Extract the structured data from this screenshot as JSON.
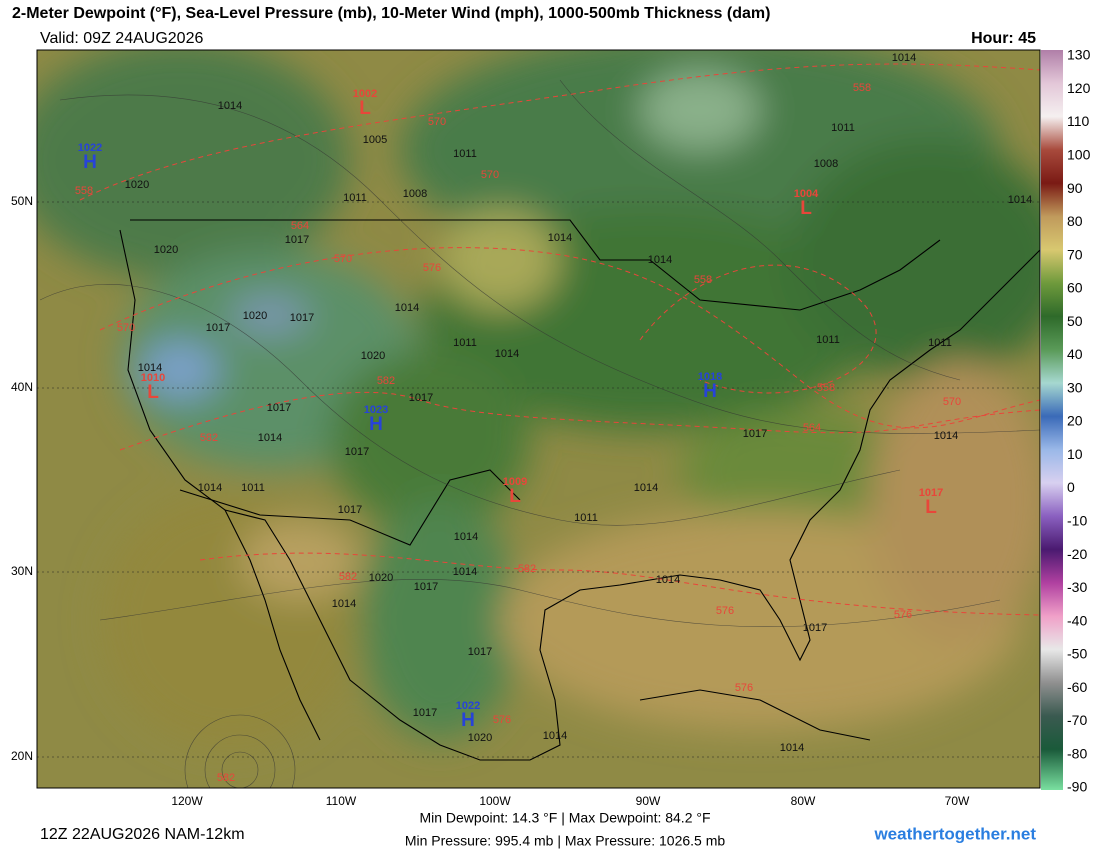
{
  "header": {
    "title": "2-Meter Dewpoint (°F), Sea-Level Pressure (mb), 10-Meter Wind (mph), 1000-500mb Thickness (dam)",
    "valid": "Valid: 09Z 24AUG2026",
    "hour": "Hour: 45"
  },
  "colorbar": {
    "ticks": [
      130,
      120,
      110,
      100,
      90,
      80,
      70,
      60,
      50,
      40,
      30,
      20,
      10,
      0,
      -10,
      -20,
      -30,
      -40,
      -50,
      -60,
      -70,
      -80,
      -90
    ]
  },
  "latitude_labels": [
    "50N",
    "40N",
    "30N",
    "20N"
  ],
  "longitude_labels": [
    "120W",
    "110W",
    "100W",
    "90W",
    "80W",
    "70W"
  ],
  "pressure_centers": [
    {
      "symbol": "H",
      "value": 1022
    },
    {
      "symbol": "L",
      "value": 1002
    },
    {
      "symbol": "L",
      "value": 1004
    },
    {
      "symbol": "L",
      "value": 1010
    },
    {
      "symbol": "H",
      "value": 1023
    },
    {
      "symbol": "H",
      "value": 1018
    },
    {
      "symbol": "L",
      "value": 1009
    },
    {
      "symbol": "L",
      "value": 1017
    },
    {
      "symbol": "H",
      "value": 1022
    }
  ],
  "isobar_labels": [
    1014,
    1005,
    1011,
    1008,
    1011,
    1020,
    1020,
    1017,
    1017,
    1020,
    1017,
    1014,
    1011,
    1014,
    1020,
    1014,
    1017,
    1017,
    1014,
    1017,
    1014,
    1011,
    1017,
    1014,
    1011,
    1014,
    1017,
    1014,
    1014,
    1014,
    1011,
    1008,
    1014,
    1014,
    1011,
    1011,
    1020,
    1017,
    1014,
    1014,
    1014,
    1017,
    1017,
    1014,
    1014,
    1020,
    1017
  ],
  "thickness_labels": [
    570,
    570,
    558,
    558,
    564,
    570,
    576,
    558,
    570,
    582,
    558,
    570,
    564,
    582,
    582,
    582,
    576,
    576,
    576,
    576,
    582
  ],
  "footer": {
    "run": "12Z 22AUG2026 NAM-12km",
    "stats_dewpoint": "Min Dewpoint:  14.3 °F | Max Dewpoint:  84.2 °F",
    "stats_pressure": "Min Pressure:  995.4 mb | Max Pressure:  1026.5 mb",
    "site": "weathertogether.net"
  }
}
